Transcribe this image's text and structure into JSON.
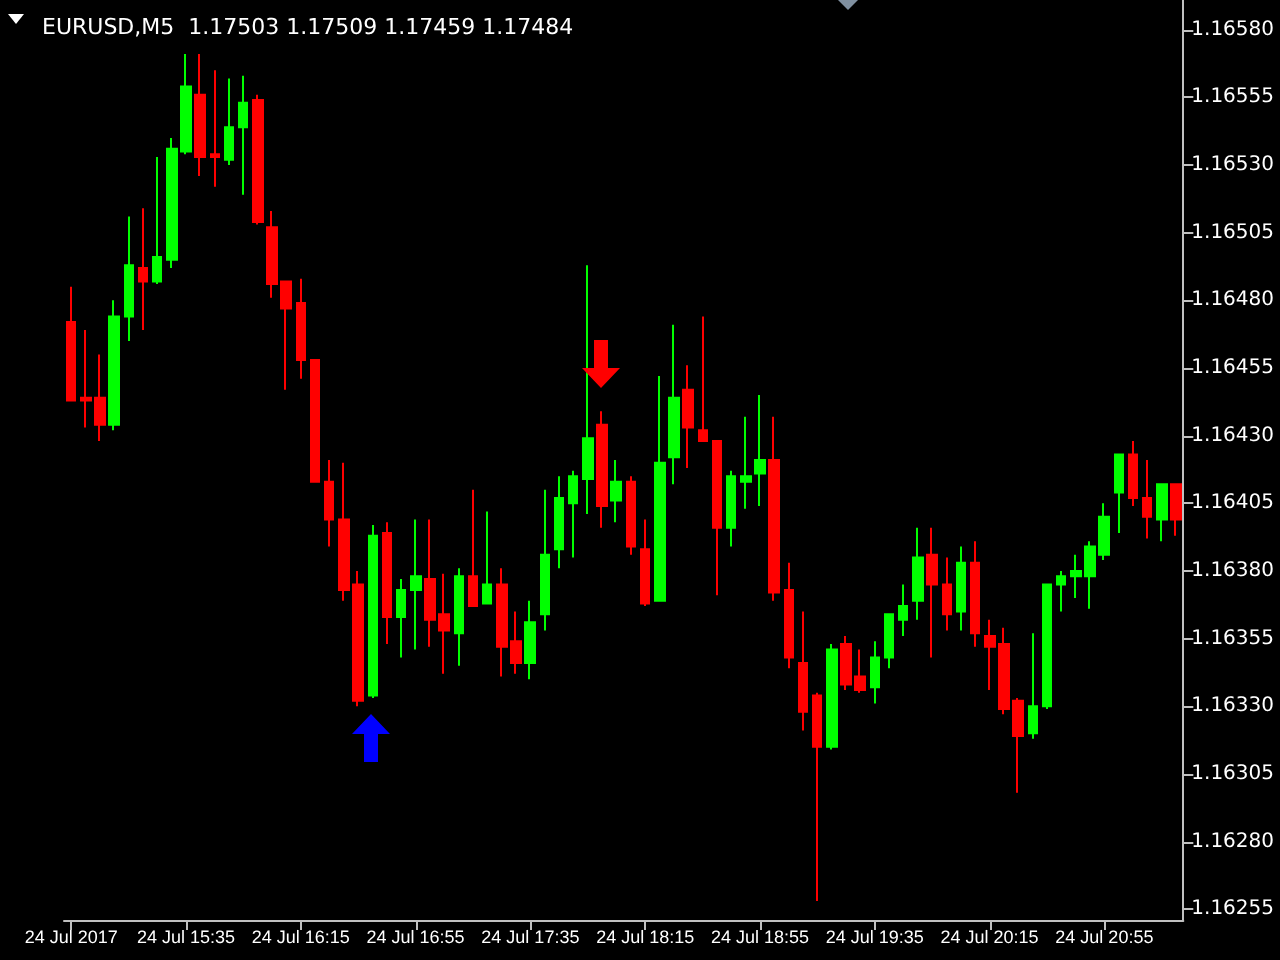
{
  "chart_data": {
    "type": "candlestick",
    "title": "EURUSD,M5  1.17503 1.17509 1.17459 1.17484",
    "categories": [
      "24 Jul 2017",
      null,
      null,
      null,
      null,
      null,
      null,
      null,
      "24 Jul 15:35",
      null,
      null,
      null,
      null,
      null,
      null,
      null,
      "24 Jul 16:15",
      null,
      null,
      null,
      null,
      null,
      null,
      null,
      "24 Jul 16:55",
      null,
      null,
      null,
      null,
      null,
      null,
      null,
      "24 Jul 17:35",
      null,
      null,
      null,
      null,
      null,
      null,
      null,
      "24 Jul 18:15",
      null,
      null,
      null,
      null,
      null,
      null,
      null,
      "24 Jul 18:55",
      null,
      null,
      null,
      null,
      null,
      null,
      null,
      "24 Jul 19:35",
      null,
      null,
      null,
      null,
      null,
      null,
      null,
      "24 Jul 20:15",
      null,
      null,
      null,
      null,
      null,
      null,
      null,
      "24 Jul 20:55",
      null,
      null,
      null,
      null,
      null
    ],
    "ohlc": [
      [
        1.16472,
        1.16485,
        1.16443,
        1.16443
      ],
      [
        1.16444,
        1.16469,
        1.16433,
        1.16443
      ],
      [
        1.16444,
        1.1646,
        1.16428,
        1.16434
      ],
      [
        1.16434,
        1.1648,
        1.16432,
        1.16474
      ],
      [
        1.16474,
        1.16511,
        1.16465,
        1.16493
      ],
      [
        1.16492,
        1.16514,
        1.16469,
        1.16487
      ],
      [
        1.16487,
        1.16533,
        1.16486,
        1.16496
      ],
      [
        1.16495,
        1.1654,
        1.16492,
        1.16536
      ],
      [
        1.16535,
        1.16571,
        1.16534,
        1.16559
      ],
      [
        1.16556,
        1.16571,
        1.16526,
        1.16533
      ],
      [
        1.16534,
        1.16565,
        1.16522,
        1.16533
      ],
      [
        1.16532,
        1.16562,
        1.1653,
        1.16544
      ],
      [
        1.16544,
        1.16563,
        1.16519,
        1.16553
      ],
      [
        1.16554,
        1.16556,
        1.16508,
        1.16509
      ],
      [
        1.16507,
        1.16513,
        1.16481,
        1.16486
      ],
      [
        1.16487,
        1.16487,
        1.16447,
        1.16477
      ],
      [
        1.16479,
        1.16488,
        1.16451,
        1.16458
      ],
      [
        1.16458,
        1.16458,
        1.16413,
        1.16413
      ],
      [
        1.16413,
        1.16421,
        1.16389,
        1.16399
      ],
      [
        1.16399,
        1.1642,
        1.16369,
        1.16373
      ],
      [
        1.16375,
        1.1638,
        1.1633,
        1.16332
      ],
      [
        1.16334,
        1.16397,
        1.16333,
        1.16393
      ],
      [
        1.16394,
        1.16398,
        1.16353,
        1.16363
      ],
      [
        1.16363,
        1.16377,
        1.16348,
        1.16373
      ],
      [
        1.16373,
        1.16399,
        1.16351,
        1.16378
      ],
      [
        1.16377,
        1.16399,
        1.16352,
        1.16362
      ],
      [
        1.16364,
        1.16379,
        1.16342,
        1.16358
      ],
      [
        1.16357,
        1.16381,
        1.16345,
        1.16378
      ],
      [
        1.16378,
        1.1641,
        1.16367,
        1.16367
      ],
      [
        1.16368,
        1.16402,
        1.16368,
        1.16375
      ],
      [
        1.16375,
        1.16381,
        1.16341,
        1.16352
      ],
      [
        1.16354,
        1.16365,
        1.16342,
        1.16346
      ],
      [
        1.16346,
        1.16369,
        1.1634,
        1.16361
      ],
      [
        1.16364,
        1.1641,
        1.16358,
        1.16386
      ],
      [
        1.16388,
        1.16415,
        1.16381,
        1.16407
      ],
      [
        1.16405,
        1.16417,
        1.16385,
        1.16415
      ],
      [
        1.16414,
        1.16493,
        1.16401,
        1.16429
      ],
      [
        1.16434,
        1.16439,
        1.16396,
        1.16404
      ],
      [
        1.16406,
        1.16421,
        1.16398,
        1.16413
      ],
      [
        1.16413,
        1.16415,
        1.16386,
        1.16389
      ],
      [
        1.16388,
        1.16399,
        1.16367,
        1.16368
      ],
      [
        1.16369,
        1.16452,
        1.16369,
        1.1642
      ],
      [
        1.16422,
        1.16471,
        1.16412,
        1.16444
      ],
      [
        1.16447,
        1.16456,
        1.16418,
        1.16433
      ],
      [
        1.16432,
        1.16474,
        1.16428,
        1.16428
      ],
      [
        1.16428,
        1.16428,
        1.16371,
        1.16396
      ],
      [
        1.16396,
        1.16417,
        1.16389,
        1.16415
      ],
      [
        1.16413,
        1.16437,
        1.16403,
        1.16415
      ],
      [
        1.16416,
        1.16445,
        1.16404,
        1.16421
      ],
      [
        1.16421,
        1.16437,
        1.16369,
        1.16372
      ],
      [
        1.16373,
        1.16383,
        1.16344,
        1.16348
      ],
      [
        1.16346,
        1.16365,
        1.16321,
        1.16328
      ],
      [
        1.16334,
        1.16335,
        1.16258,
        1.16315
      ],
      [
        1.16315,
        1.16353,
        1.16314,
        1.16351
      ],
      [
        1.16353,
        1.16356,
        1.16336,
        1.16338
      ],
      [
        1.16341,
        1.16351,
        1.16335,
        1.16336
      ],
      [
        1.16337,
        1.16354,
        1.16331,
        1.16348
      ],
      [
        1.16348,
        1.16364,
        1.16344,
        1.16364
      ],
      [
        1.16362,
        1.16375,
        1.16356,
        1.16367
      ],
      [
        1.16369,
        1.16396,
        1.16362,
        1.16385
      ],
      [
        1.16386,
        1.16396,
        1.16348,
        1.16375
      ],
      [
        1.16375,
        1.16385,
        1.16358,
        1.16364
      ],
      [
        1.16365,
        1.16389,
        1.16358,
        1.16383
      ],
      [
        1.16383,
        1.16391,
        1.16352,
        1.16357
      ],
      [
        1.16356,
        1.16362,
        1.16336,
        1.16352
      ],
      [
        1.16353,
        1.16359,
        1.16327,
        1.16329
      ],
      [
        1.16332,
        1.16333,
        1.16298,
        1.16319
      ],
      [
        1.1632,
        1.16357,
        1.16318,
        1.1633
      ],
      [
        1.1633,
        1.16375,
        1.16329,
        1.16375
      ],
      [
        1.16375,
        1.1638,
        1.16365,
        1.16378
      ],
      [
        1.16378,
        1.16386,
        1.1637,
        1.1638
      ],
      [
        1.16378,
        1.16391,
        1.16366,
        1.16389
      ],
      [
        1.16386,
        1.16405,
        1.16384,
        1.164
      ],
      [
        1.16409,
        1.16423,
        1.16394,
        1.16423
      ],
      [
        1.16423,
        1.16428,
        1.16404,
        1.16407
      ],
      [
        1.16407,
        1.16421,
        1.16392,
        1.164
      ],
      [
        1.16399,
        1.16412,
        1.16391,
        1.16412
      ],
      [
        1.16412,
        1.16412,
        1.16393,
        1.16399
      ]
    ],
    "colors": [
      "#ff0000",
      "#ff0000",
      "#ff0000",
      "#00ff00",
      "#00ff00",
      "#ff0000",
      "#00ff00",
      "#00ff00",
      "#00ff00",
      "#ff0000",
      "#ff0000",
      "#00ff00",
      "#00ff00",
      "#ff0000",
      "#ff0000",
      "#ff0000",
      "#ff0000",
      "#ff0000",
      "#ff0000",
      "#ff0000",
      "#ff0000",
      "#00ff00",
      "#ff0000",
      "#00ff00",
      "#00ff00",
      "#ff0000",
      "#ff0000",
      "#00ff00",
      "#ff0000",
      "#00ff00",
      "#ff0000",
      "#ff0000",
      "#00ff00",
      "#00ff00",
      "#00ff00",
      "#00ff00",
      "#00ff00",
      "#ff0000",
      "#00ff00",
      "#ff0000",
      "#ff0000",
      "#00ff00",
      "#00ff00",
      "#ff0000",
      "#ff0000",
      "#ff0000",
      "#00ff00",
      "#00ff00",
      "#00ff00",
      "#ff0000",
      "#ff0000",
      "#ff0000",
      "#ff0000",
      "#00ff00",
      "#ff0000",
      "#ff0000",
      "#00ff00",
      "#00ff00",
      "#00ff00",
      "#00ff00",
      "#ff0000",
      "#ff0000",
      "#00ff00",
      "#ff0000",
      "#ff0000",
      "#ff0000",
      "#ff0000",
      "#00ff00",
      "#00ff00",
      "#00ff00",
      "#00ff00",
      "#00ff00",
      "#00ff00",
      "#00ff00",
      "#ff0000",
      "#ff0000",
      "#00ff00",
      "#ff0000"
    ],
    "ylim": [
      1.16251,
      1.16591
    ],
    "yticks": [
      1.16255,
      {
        "value": 1.1628,
        "label": "1.16280"
      },
      1.16305,
      {
        "value": 1.1633,
        "label": "1.16330"
      },
      1.16355,
      {
        "value": 1.1638,
        "label": "1.16380"
      },
      1.16405,
      {
        "value": 1.1643,
        "label": "1.16430"
      },
      1.16455,
      {
        "value": 1.1648,
        "label": "1.16480"
      },
      1.16505,
      {
        "value": 1.1653,
        "label": "1.16530"
      },
      1.16555,
      {
        "value": 1.1658,
        "label": "1.16580"
      }
    ]
  }
}
